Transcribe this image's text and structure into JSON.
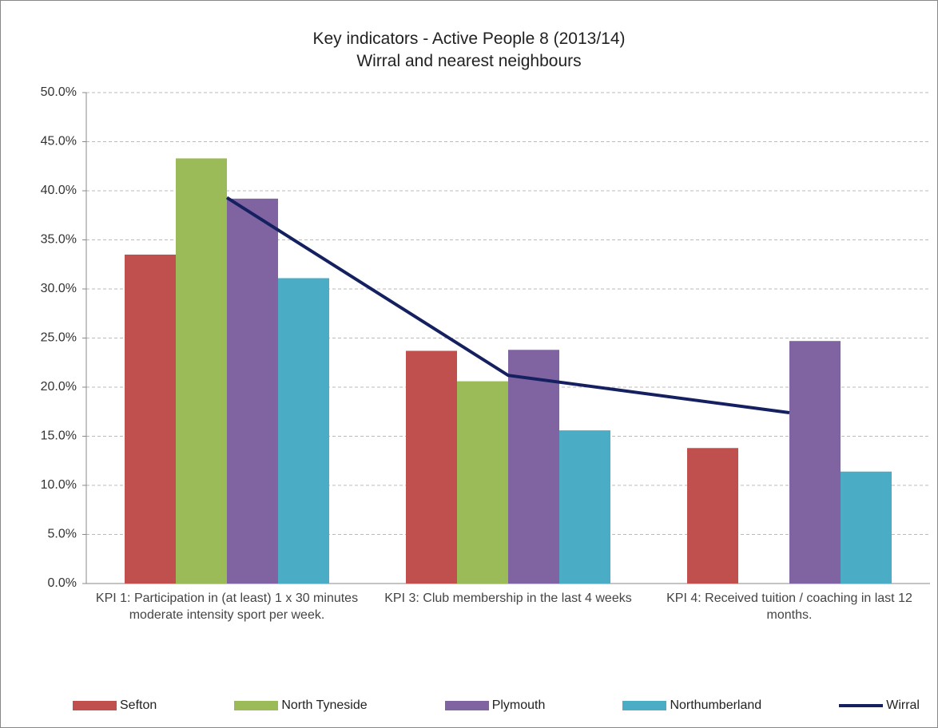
{
  "chart_data": {
    "type": "bar",
    "title": "Key indicators - Active People 8 (2013/14)",
    "subtitle": "Wirral and nearest neighbours",
    "categories": [
      "KPI 1: Participation in (at least) 1 x 30 minutes moderate intensity sport per week.",
      "KPI 3: Club membership in the last 4 weeks",
      "KPI 4: Received tuition / coaching in last 12 months."
    ],
    "series": [
      {
        "name": "Sefton",
        "color": "#c0504d",
        "values": [
          33.5,
          23.7,
          13.8
        ]
      },
      {
        "name": "North Tyneside",
        "color": "#9bbb59",
        "values": [
          43.3,
          20.6,
          null
        ]
      },
      {
        "name": "Plymouth",
        "color": "#8064a2",
        "values": [
          39.2,
          23.8,
          24.7
        ]
      },
      {
        "name": "Northumberland",
        "color": "#4bacc6",
        "values": [
          31.1,
          15.6,
          11.4
        ]
      },
      {
        "name": "Wirral",
        "color": "#142060",
        "type": "line",
        "values": [
          39.3,
          21.2,
          17.4
        ]
      }
    ],
    "ylim": [
      0,
      50
    ],
    "yticks": [
      {
        "value": 0,
        "label": "0.0%"
      },
      {
        "value": 5,
        "label": "5.0%"
      },
      {
        "value": 10,
        "label": "10.0%"
      },
      {
        "value": 15,
        "label": "15.0%"
      },
      {
        "value": 20,
        "label": "20.0%"
      },
      {
        "value": 25,
        "label": "25.0%"
      },
      {
        "value": 30,
        "label": "30.0%"
      },
      {
        "value": 35,
        "label": "35.0%"
      },
      {
        "value": 40,
        "label": "40.0%"
      },
      {
        "value": 45,
        "label": "45.0%"
      },
      {
        "value": 50,
        "label": "50.0%"
      }
    ],
    "grid": true
  }
}
